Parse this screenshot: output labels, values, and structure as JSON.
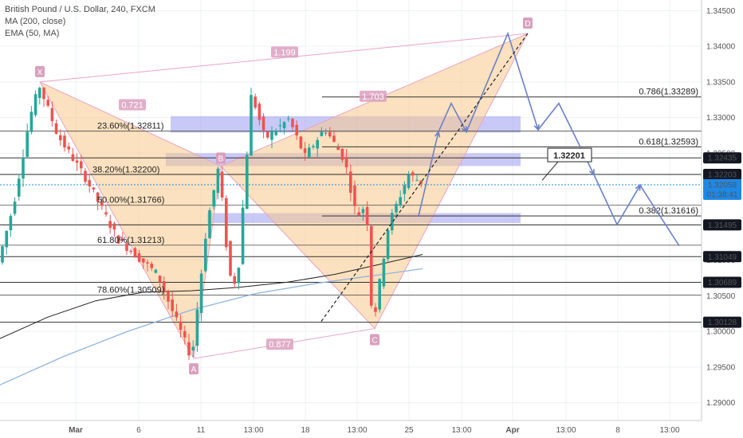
{
  "legend": {
    "symbol": "British Pound / U.S. Dollar, 240, FXCM",
    "ma": "MA (200, close)",
    "ema": "EMA (50, MA)"
  },
  "chart_data": {
    "type": "candlestick",
    "price_axis": {
      "range": [
        1.2875,
        1.3465
      ],
      "ticks": [
        "1.34500",
        "1.34000",
        "1.33500",
        "1.33000",
        "1.32500",
        "1.32000",
        "1.31500",
        "1.31000",
        "1.30500",
        "1.30000",
        "1.29500",
        "1.29000"
      ]
    },
    "time_axis": {
      "ticks": [
        "Mar",
        "6",
        "11",
        "13:00",
        "18",
        "13:00",
        "25",
        "13:00",
        "Apr",
        "13:00",
        "8",
        "13:00"
      ]
    },
    "price_tags": [
      {
        "text": "1.32435",
        "value": 1.32435
      },
      {
        "text": "1.32203",
        "value": 1.32203
      },
      {
        "text": "1.31495",
        "value": 1.31495
      },
      {
        "text": "1.31049",
        "value": 1.31049
      },
      {
        "text": "1.30689",
        "value": 1.30689
      },
      {
        "text": "1.30128",
        "value": 1.30128
      }
    ],
    "current_price": {
      "text": "1.32058",
      "value": 1.32058,
      "countdown": "01:38:41",
      "color": "#1e88e5"
    },
    "pattern_points": [
      {
        "label": "X",
        "price": 1.335
      },
      {
        "label": "A",
        "price": 1.2962
      },
      {
        "label": "B",
        "price": 1.3232
      },
      {
        "label": "C",
        "price": 1.3004
      },
      {
        "label": "D",
        "price": 1.3418
      }
    ],
    "ratios": [
      "1.199",
      "0.721",
      "1.703",
      "0.877"
    ],
    "fib_labels_left": [
      "23.60%(1.32811)",
      "38.20%(1.32200)",
      "50.00%(1.31766)",
      "61.80%(1.31213)",
      "78.60%(1.30509)"
    ],
    "fib_labels_right": [
      "0.786(1.33289)",
      "0.618(1.32593)",
      "0.382(1.31616)"
    ],
    "callout": "1.32201",
    "colors": {
      "bull": "#26a69a",
      "bear": "#ef5350",
      "pattern_fill": "#f7c98b",
      "pattern_line": "#e8a4c6",
      "zone": "#9c9cf2",
      "projection": "#6b80c6",
      "ma": "#222222",
      "ema": "#90b4e0"
    }
  }
}
